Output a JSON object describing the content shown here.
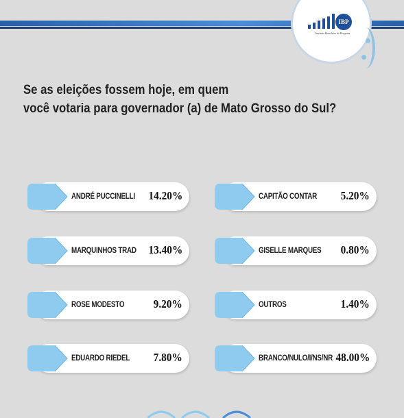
{
  "logo": {
    "text": "IBP",
    "subtitle": "Instituto Brasileiro de Pesquisa"
  },
  "question": {
    "line1": "Se as eleições fossem hoje, em quem",
    "line2": "você votaria para governador (a) de Mato Grosso do Sul?"
  },
  "candidates": [
    {
      "name": "ANDRÉ PUCCINELLI",
      "value": "14.20%"
    },
    {
      "name": "MARQUINHOS TRAD",
      "value": "13.40%"
    },
    {
      "name": "ROSE MODESTO",
      "value": "9.20%"
    },
    {
      "name": "EDUARDO RIEDEL",
      "value": "7.80%"
    },
    {
      "name": "CAPITÃO CONTAR",
      "value": "5.20%"
    },
    {
      "name": "GISELLE MARQUES",
      "value": "0.80%"
    },
    {
      "name": "OUTROS",
      "value": "1.40%"
    },
    {
      "name": "BRANCO/NULO/I/NS/NR",
      "value": "48.00%"
    }
  ],
  "colors": {
    "accent": "#8ecbef",
    "accent_dark": "#2b5fa8",
    "background": "#dcdcdc"
  }
}
